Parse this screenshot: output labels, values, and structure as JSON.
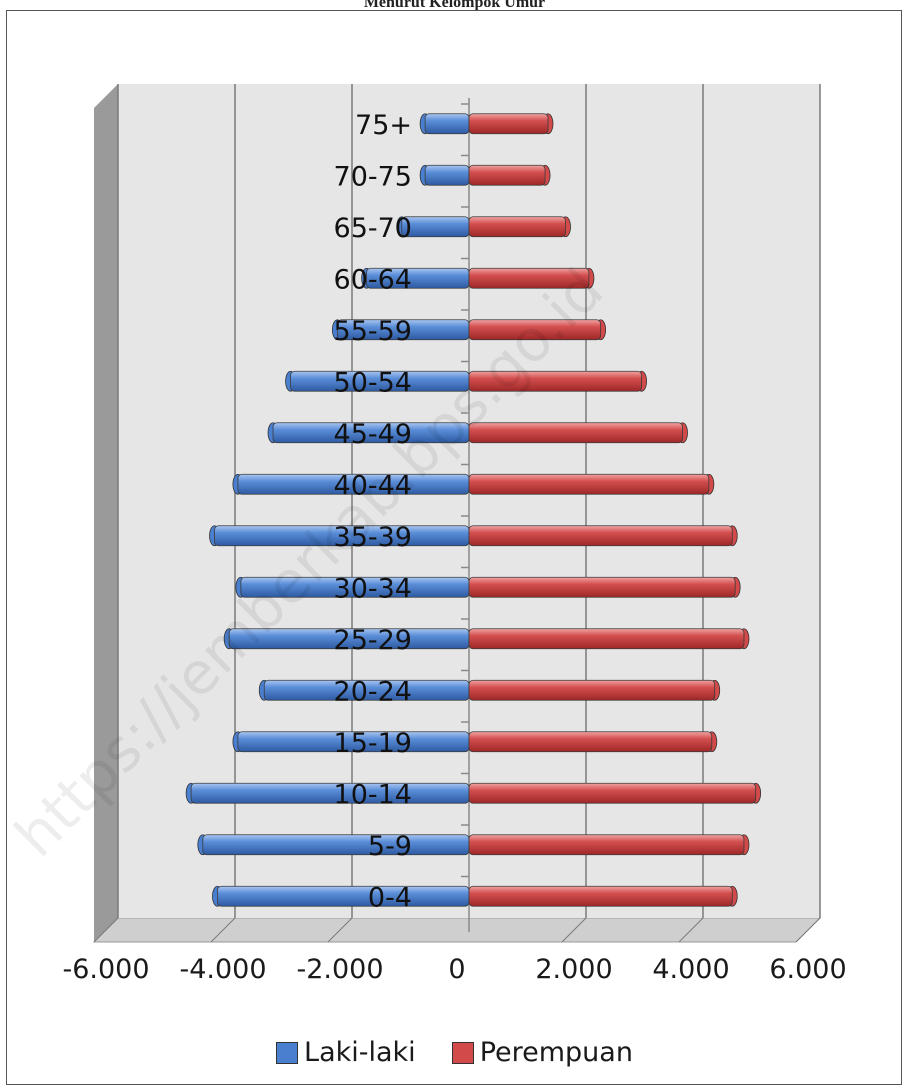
{
  "page": {
    "caption": "Menurut Kelompok Umur",
    "watermark": "https://jemberkab.bps.go.id"
  },
  "colors": {
    "male": "#4a7fd0",
    "female": "#d24a4a",
    "wall": "#e6e6e6",
    "grid": "#7a7a7a"
  },
  "chart_data": {
    "type": "bar",
    "orientation": "horizontal",
    "categories": [
      "0-4",
      "5-9",
      "10-14",
      "15-19",
      "20-24",
      "25-29",
      "30-34",
      "35-39",
      "40-44",
      "45-49",
      "50-54",
      "55-59",
      "60-64",
      "65-70",
      "70-75",
      "75+"
    ],
    "series": [
      {
        "name": "Laki-laki",
        "values": [
          -4300,
          -4550,
          -4750,
          -3950,
          -3500,
          -4100,
          -3900,
          -4350,
          -3950,
          -3350,
          -3050,
          -2250,
          -1750,
          -1150,
          -750,
          -750
        ]
      },
      {
        "name": "Perempuan",
        "values": [
          4500,
          4700,
          4900,
          4150,
          4200,
          4700,
          4550,
          4500,
          4100,
          3650,
          2950,
          2250,
          2050,
          1650,
          1300,
          1350
        ]
      }
    ],
    "x_ticks": [
      "-6.000",
      "-4.000",
      "-2.000",
      "0",
      "2.000",
      "4.000",
      "6.000"
    ],
    "xlim": [
      -6000,
      6000
    ],
    "grid": true,
    "legend_position": "bottom"
  }
}
